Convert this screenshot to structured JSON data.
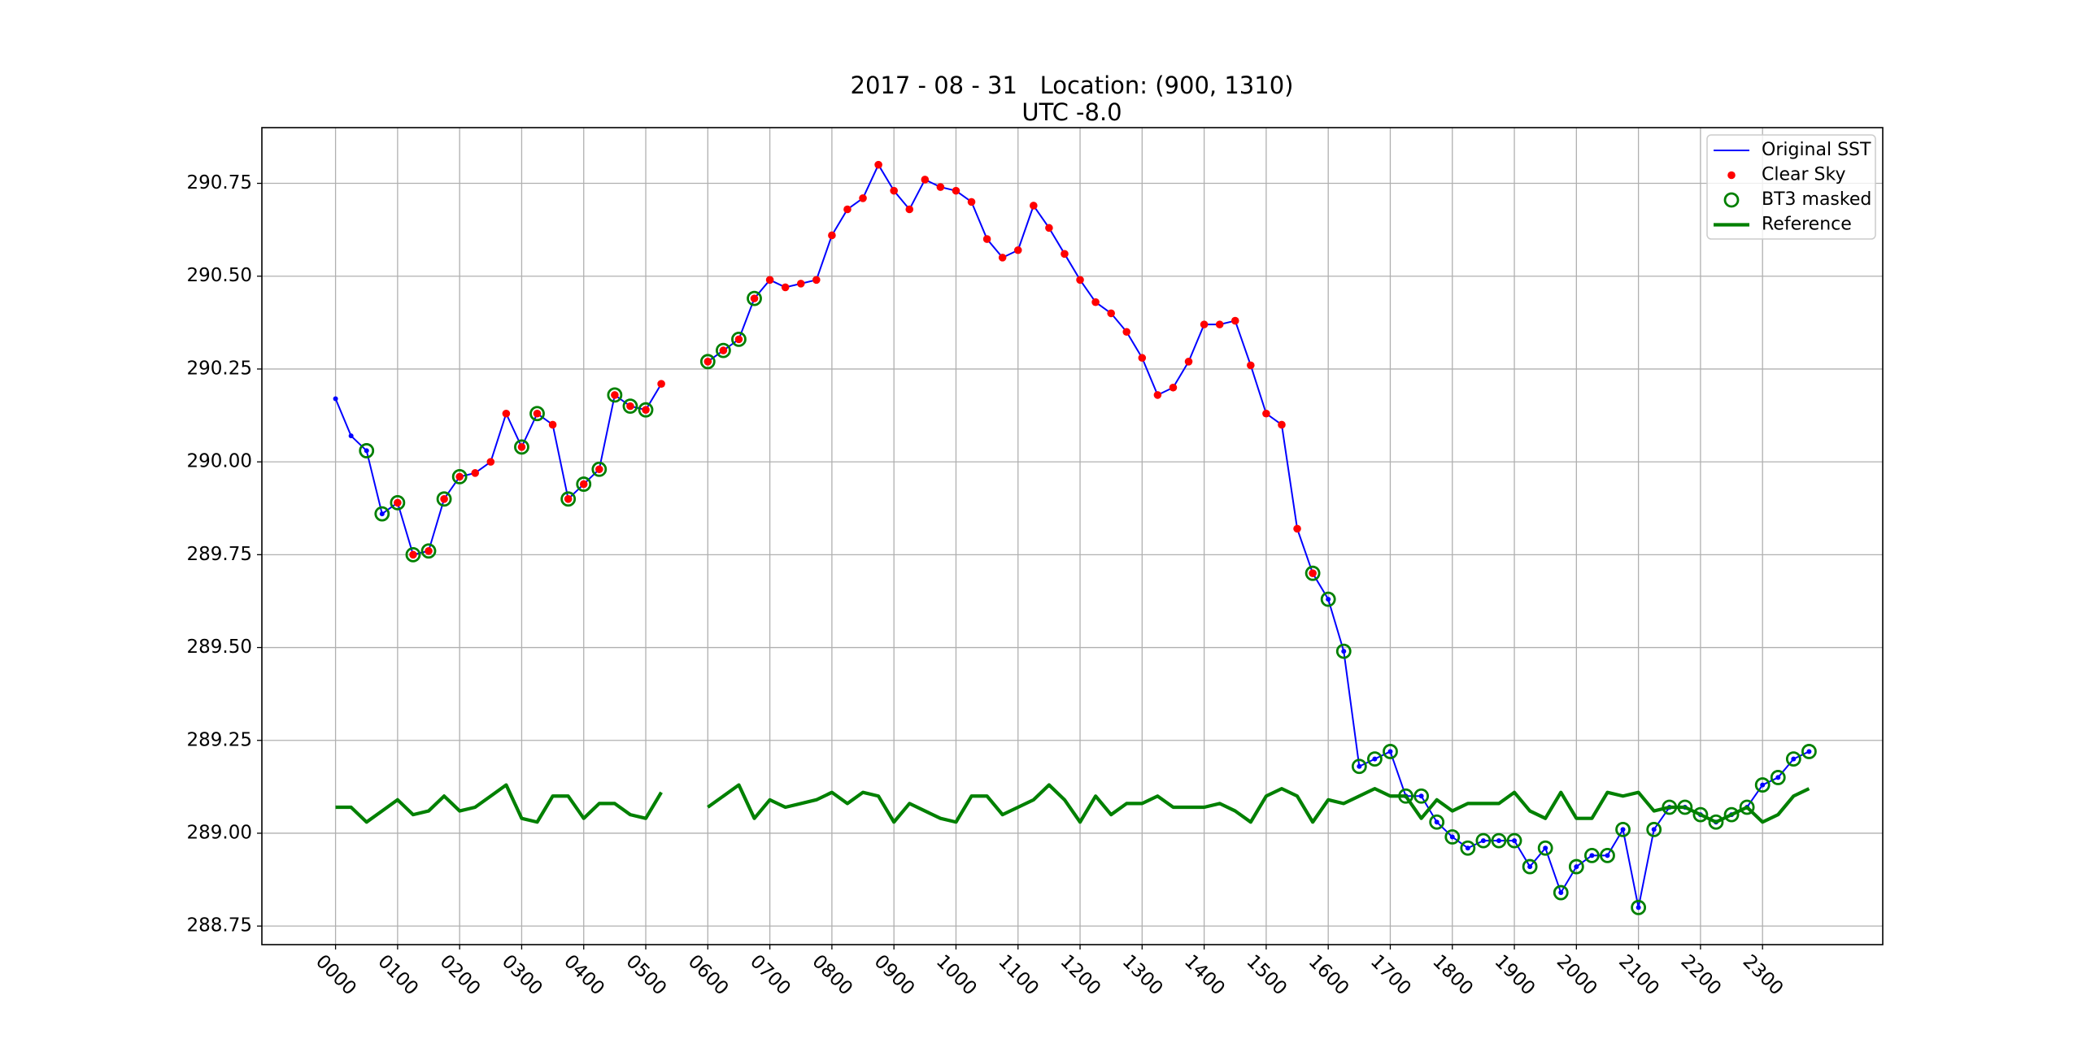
{
  "chart_data": {
    "type": "line",
    "title": "2017 - 08 - 31   Location: (900, 1310)",
    "subtitle": "UTC -8.0",
    "x": [
      0,
      0.25,
      0.5,
      0.75,
      1,
      1.25,
      1.5,
      1.75,
      2,
      2.25,
      2.5,
      2.75,
      3,
      3.25,
      3.5,
      3.75,
      4,
      4.25,
      4.5,
      4.75,
      5,
      5.25,
      5.5,
      5.75,
      6,
      6.25,
      6.5,
      6.75,
      7,
      7.25,
      7.5,
      7.75,
      8,
      8.25,
      8.5,
      8.75,
      9,
      9.25,
      9.5,
      9.75,
      10,
      10.25,
      10.5,
      10.75,
      11,
      11.25,
      11.5,
      11.75,
      12,
      12.25,
      12.5,
      12.75,
      13,
      13.25,
      13.5,
      13.75,
      14,
      14.25,
      14.5,
      14.75,
      15,
      15.25,
      15.5,
      15.75,
      16,
      16.25,
      16.5,
      16.75,
      17,
      17.25,
      17.5,
      17.75,
      18,
      18.25,
      18.5,
      18.75,
      19,
      19.25,
      19.5,
      19.75,
      20,
      20.25,
      20.5,
      20.75,
      21,
      21.25,
      21.5,
      21.75,
      22,
      22.25,
      22.5,
      22.75,
      23,
      23.25,
      23.5,
      23.75
    ],
    "series": [
      {
        "name": "Original SST",
        "color": "#0000ff",
        "kind": "line",
        "marker": "dot",
        "weight": "thin",
        "values": [
          290.17,
          290.07,
          290.03,
          289.86,
          289.89,
          289.75,
          289.76,
          289.9,
          289.96,
          289.97,
          290.0,
          290.13,
          290.04,
          290.13,
          290.1,
          289.9,
          289.94,
          289.98,
          290.18,
          290.15,
          290.14,
          290.21,
          null,
          null,
          290.27,
          290.3,
          290.33,
          290.44,
          290.49,
          290.47,
          290.48,
          290.49,
          290.61,
          290.68,
          290.71,
          290.8,
          290.73,
          290.68,
          290.76,
          290.74,
          290.73,
          290.7,
          290.6,
          290.55,
          290.57,
          290.69,
          290.63,
          290.56,
          290.49,
          290.43,
          290.4,
          290.35,
          290.28,
          290.18,
          290.2,
          290.27,
          290.37,
          290.37,
          290.38,
          290.26,
          290.13,
          290.1,
          289.82,
          289.7,
          289.63,
          289.49,
          289.18,
          289.2,
          289.22,
          289.1,
          289.1,
          289.03,
          288.99,
          288.96,
          288.98,
          288.98,
          288.98,
          288.91,
          288.96,
          288.84,
          288.91,
          288.94,
          288.94,
          289.01,
          288.8,
          289.01,
          289.07,
          289.07,
          289.05,
          289.03,
          289.05,
          289.07,
          289.13,
          289.15,
          289.2,
          289.22
        ]
      },
      {
        "name": "Clear Sky",
        "color": "#ff0000",
        "kind": "scatter",
        "marker": "dot",
        "values": [
          null,
          null,
          null,
          null,
          289.89,
          289.75,
          289.76,
          289.9,
          289.96,
          289.97,
          290.0,
          290.13,
          290.04,
          290.13,
          290.1,
          289.9,
          289.94,
          289.98,
          290.18,
          290.15,
          290.14,
          290.21,
          null,
          null,
          290.27,
          290.3,
          290.33,
          290.44,
          290.49,
          290.47,
          290.48,
          290.49,
          290.61,
          290.68,
          290.71,
          290.8,
          290.73,
          290.68,
          290.76,
          290.74,
          290.73,
          290.7,
          290.6,
          290.55,
          290.57,
          290.69,
          290.63,
          290.56,
          290.49,
          290.43,
          290.4,
          290.35,
          290.28,
          290.18,
          290.2,
          290.27,
          290.37,
          290.37,
          290.38,
          290.26,
          290.13,
          290.1,
          289.82,
          289.7,
          null,
          null,
          null,
          null,
          null,
          null,
          null,
          null,
          null,
          null,
          null,
          null,
          null,
          null,
          null,
          null,
          null,
          null,
          null,
          null,
          null,
          null,
          null,
          null,
          null,
          null,
          null,
          null,
          null,
          null,
          null,
          null
        ]
      },
      {
        "name": "BT3 masked",
        "color": "#008000",
        "kind": "scatter",
        "marker": "ring",
        "values": [
          null,
          null,
          290.03,
          289.86,
          289.89,
          289.75,
          289.76,
          289.9,
          289.96,
          null,
          null,
          null,
          290.04,
          290.13,
          null,
          289.9,
          289.94,
          289.98,
          290.18,
          290.15,
          290.14,
          null,
          null,
          null,
          290.27,
          290.3,
          290.33,
          290.44,
          null,
          null,
          null,
          null,
          null,
          null,
          null,
          null,
          null,
          null,
          null,
          null,
          null,
          null,
          null,
          null,
          null,
          null,
          null,
          null,
          null,
          null,
          null,
          null,
          null,
          null,
          null,
          null,
          null,
          null,
          null,
          null,
          null,
          null,
          null,
          289.7,
          289.63,
          289.49,
          289.18,
          289.2,
          289.22,
          289.1,
          289.1,
          289.03,
          288.99,
          288.96,
          288.98,
          288.98,
          288.98,
          288.91,
          288.96,
          288.84,
          288.91,
          288.94,
          288.94,
          289.01,
          288.8,
          289.01,
          289.07,
          289.07,
          289.05,
          289.03,
          289.05,
          289.07,
          289.13,
          289.15,
          289.2,
          289.22
        ]
      },
      {
        "name": "Reference",
        "color": "#008000",
        "kind": "line",
        "weight": "thick",
        "values": [
          289.07,
          289.07,
          289.03,
          289.06,
          289.09,
          289.05,
          289.06,
          289.1,
          289.06,
          289.07,
          289.1,
          289.13,
          289.04,
          289.03,
          289.1,
          289.1,
          289.04,
          289.08,
          289.08,
          289.05,
          289.04,
          289.11,
          null,
          null,
          289.07,
          289.1,
          289.13,
          289.04,
          289.09,
          289.07,
          289.08,
          289.09,
          289.11,
          289.08,
          289.11,
          289.1,
          289.03,
          289.08,
          289.06,
          289.04,
          289.03,
          289.1,
          289.1,
          289.05,
          289.07,
          289.09,
          289.13,
          289.09,
          289.03,
          289.1,
          289.05,
          289.08,
          289.08,
          289.1,
          289.07,
          289.07,
          289.07,
          289.08,
          289.06,
          289.03,
          289.1,
          289.12,
          289.1,
          289.03,
          289.09,
          289.08,
          289.1,
          289.12,
          289.1,
          289.1,
          289.04,
          289.09,
          289.06,
          289.08,
          289.08,
          289.08,
          289.11,
          289.06,
          289.04,
          289.11,
          289.04,
          289.04,
          289.11,
          289.1,
          289.11,
          289.06,
          289.07,
          289.07,
          289.05,
          289.03,
          289.05,
          289.07,
          289.03,
          289.05,
          289.1,
          289.12
        ]
      }
    ],
    "xlim": [
      -1.1875,
      24.9375
    ],
    "xticks": [
      {
        "value": 0,
        "label": "0000"
      },
      {
        "value": 1,
        "label": "0100"
      },
      {
        "value": 2,
        "label": "0200"
      },
      {
        "value": 3,
        "label": "0300"
      },
      {
        "value": 4,
        "label": "0400"
      },
      {
        "value": 5,
        "label": "0500"
      },
      {
        "value": 6,
        "label": "0600"
      },
      {
        "value": 7,
        "label": "0700"
      },
      {
        "value": 8,
        "label": "0800"
      },
      {
        "value": 9,
        "label": "0900"
      },
      {
        "value": 10,
        "label": "1000"
      },
      {
        "value": 11,
        "label": "1100"
      },
      {
        "value": 12,
        "label": "1200"
      },
      {
        "value": 13,
        "label": "1300"
      },
      {
        "value": 14,
        "label": "1400"
      },
      {
        "value": 15,
        "label": "1500"
      },
      {
        "value": 16,
        "label": "1600"
      },
      {
        "value": 17,
        "label": "1700"
      },
      {
        "value": 18,
        "label": "1800"
      },
      {
        "value": 19,
        "label": "1900"
      },
      {
        "value": 20,
        "label": "2000"
      },
      {
        "value": 21,
        "label": "2100"
      },
      {
        "value": 22,
        "label": "2200"
      },
      {
        "value": 23,
        "label": "2300"
      }
    ],
    "ylim": [
      288.7,
      290.9
    ],
    "yticks": [
      288.75,
      {
        "value": 289,
        "label": "289.00"
      },
      289.25,
      {
        "value": 289.5,
        "label": "289.50"
      },
      289.75,
      {
        "value": 290,
        "label": "290.00"
      },
      290.25,
      {
        "value": 290.5,
        "label": "290.50"
      },
      290.75
    ],
    "grid": true,
    "legend": "upper right"
  }
}
